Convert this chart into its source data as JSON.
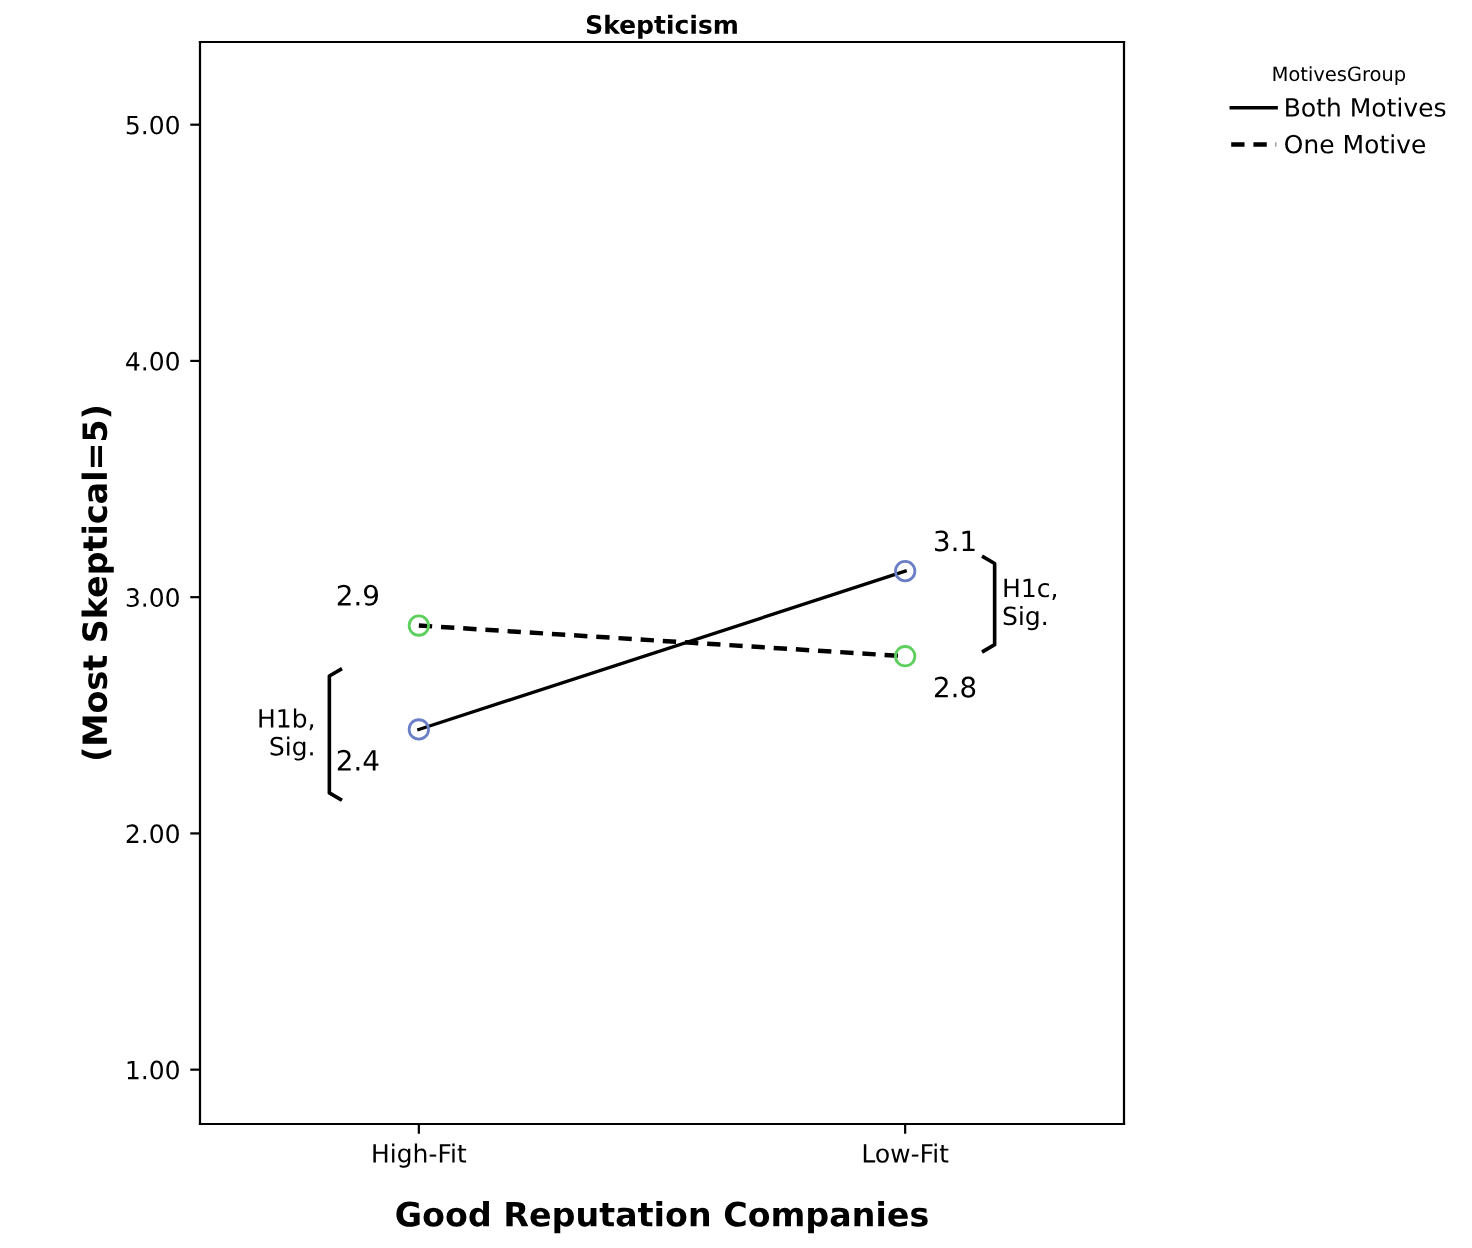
{
  "chart_data": {
    "type": "line",
    "title": "Skepticism",
    "xlabel": "Good Reputation Companies",
    "ylabel": "(Most Skeptical=5)",
    "legend_title": "MotivesGroup",
    "categories": [
      "High-Fit",
      "Low-Fit"
    ],
    "series": [
      {
        "name": "Both Motives",
        "color": "#000000",
        "colors": [
          "#6a7fc6",
          "#6a7fc6"
        ],
        "line_style": "solid",
        "values": [
          2.44,
          3.11
        ],
        "value_labels": [
          "2.4",
          "3.1"
        ]
      },
      {
        "name": "One Motive",
        "color": "#000000",
        "colors": [
          "#5ccf5c",
          "#5ccf5c"
        ],
        "line_style": "dashed",
        "values": [
          2.88,
          2.75
        ],
        "value_labels": [
          "2.9",
          "2.8"
        ]
      }
    ],
    "marker": "circle",
    "ylim": [
      0.77,
      5.35
    ],
    "yticks": [
      {
        "value": 1,
        "label": "1.00"
      },
      {
        "value": 2,
        "label": "2.00"
      },
      {
        "value": 3,
        "label": "3.00"
      },
      {
        "value": 4,
        "label": "4.00"
      },
      {
        "value": 5,
        "label": "5.00"
      }
    ],
    "grid": false,
    "legend": "top right",
    "annotations": [
      "H1b,\nSig.",
      "H1c,\nSig."
    ]
  }
}
